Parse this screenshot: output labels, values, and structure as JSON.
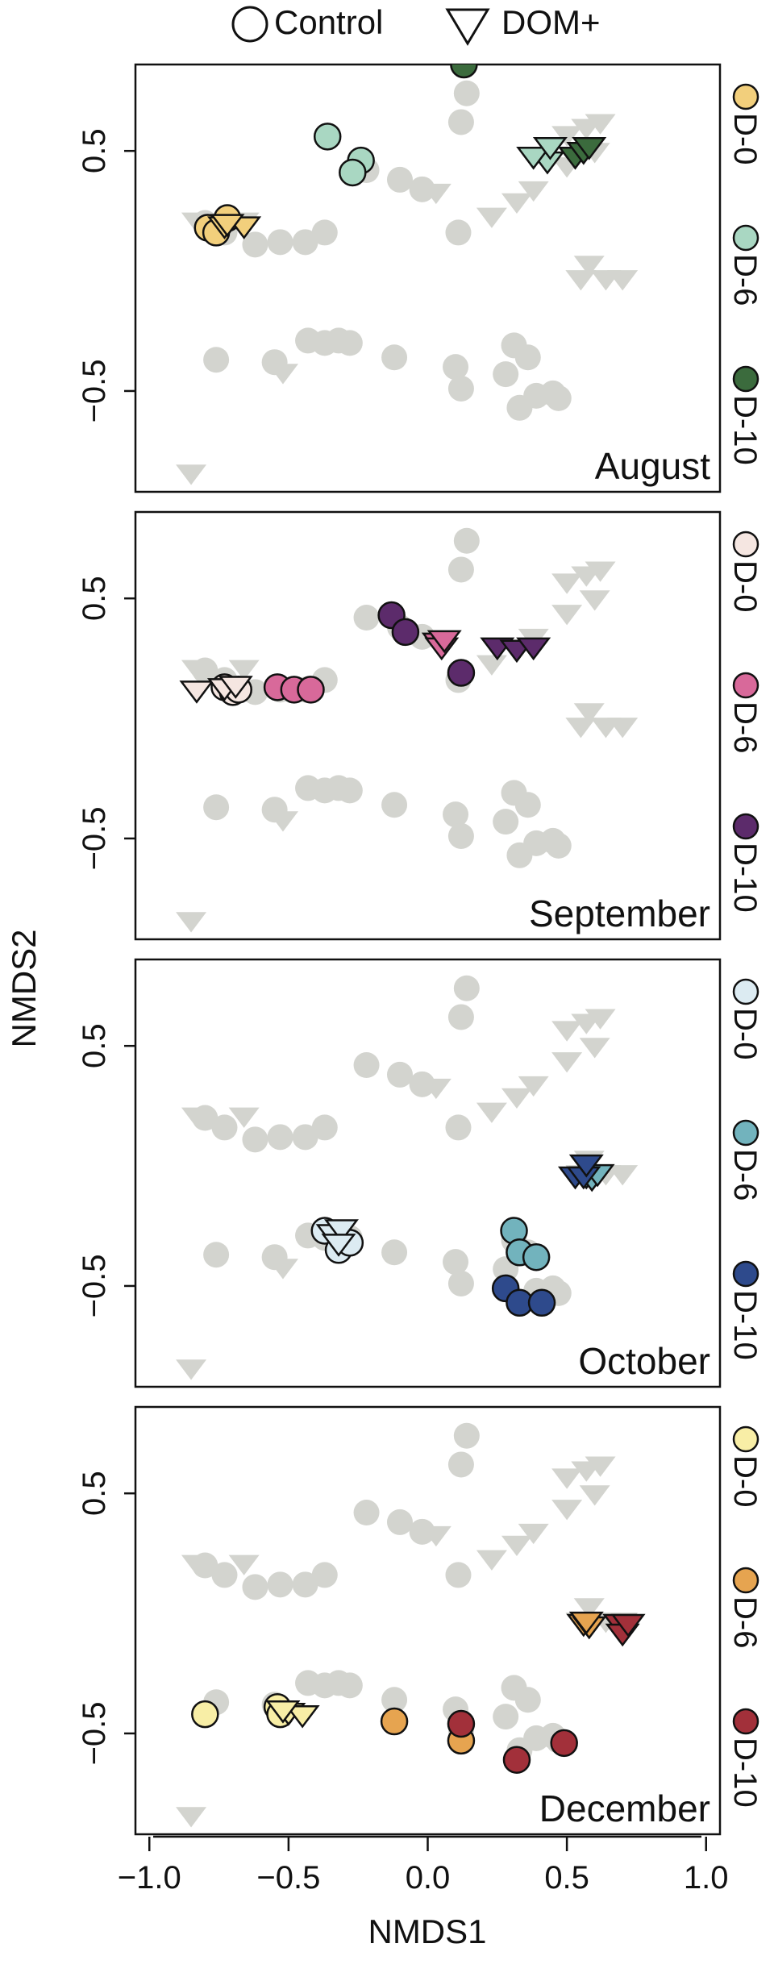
{
  "legend": {
    "shapes": [
      {
        "shape": "circle",
        "label": "Control"
      },
      {
        "shape": "triangle",
        "label": "DOM+"
      }
    ]
  },
  "axes": {
    "x": {
      "label": "NMDS1",
      "ticks": [
        "−1.0",
        "−0.5",
        "0.0",
        "0.5",
        "1.0"
      ],
      "tick_values": [
        -1.0,
        -0.5,
        0.0,
        0.5,
        1.0
      ],
      "range": [
        -1.05,
        1.05
      ]
    },
    "y": {
      "label": "NMDS2",
      "ticks": [
        "0.5",
        "−0.5"
      ],
      "tick_values": [
        0.5,
        -0.5
      ],
      "range": [
        -0.92,
        0.86
      ]
    }
  },
  "colors": {
    "background_points": "#d3d4cf",
    "outline": "#111111"
  },
  "chart_data": {
    "type": "scatter",
    "xlabel": "NMDS1",
    "ylabel": "NMDS2",
    "xlim": [
      -1.05,
      1.05
    ],
    "ylim": [
      -0.92,
      0.86
    ],
    "grid": false,
    "legend_position": "top",
    "background": {
      "name": "",
      "control": [
        [
          -0.8,
          0.2
        ],
        [
          -0.73,
          0.16
        ],
        [
          -0.62,
          0.11
        ],
        [
          -0.53,
          0.12
        ],
        [
          -0.44,
          0.12
        ],
        [
          -0.37,
          0.16
        ],
        [
          -0.22,
          0.42
        ],
        [
          -0.1,
          0.38
        ],
        [
          -0.02,
          0.34
        ],
        [
          0.11,
          0.16
        ],
        [
          0.12,
          0.62
        ],
        [
          0.14,
          0.74
        ],
        [
          0.13,
          0.93
        ],
        [
          -0.76,
          -0.37
        ],
        [
          -0.55,
          -0.38
        ],
        [
          -0.43,
          -0.29
        ],
        [
          -0.37,
          -0.3
        ],
        [
          -0.32,
          -0.29
        ],
        [
          -0.28,
          -0.3
        ],
        [
          -0.12,
          -0.36
        ],
        [
          0.1,
          -0.4
        ],
        [
          0.12,
          -0.49
        ],
        [
          0.28,
          -0.43
        ],
        [
          0.31,
          -0.31
        ],
        [
          0.36,
          -0.36
        ],
        [
          0.39,
          -0.52
        ],
        [
          0.45,
          -0.51
        ],
        [
          0.47,
          -0.53
        ],
        [
          0.33,
          -0.57
        ]
      ],
      "dom": [
        [
          -0.83,
          0.21
        ],
        [
          -0.66,
          0.21
        ],
        [
          -0.52,
          -0.42
        ],
        [
          0.03,
          0.33
        ],
        [
          0.23,
          0.23
        ],
        [
          0.32,
          0.29
        ],
        [
          0.38,
          0.34
        ],
        [
          0.5,
          0.44
        ],
        [
          0.6,
          0.5
        ],
        [
          0.5,
          0.57
        ],
        [
          0.57,
          0.6
        ],
        [
          0.62,
          0.62
        ],
        [
          0.58,
          0.03
        ],
        [
          0.64,
          -0.03
        ],
        [
          0.7,
          -0.03
        ],
        [
          0.55,
          -0.03
        ],
        [
          -0.85,
          -0.84
        ]
      ]
    },
    "panels": [
      {
        "month": "August",
        "series": [
          {
            "name": "D-0",
            "color": "#f2cf7c",
            "control": [
              [
                -0.79,
                0.18
              ],
              [
                -0.72,
                0.22
              ],
              [
                -0.76,
                0.16
              ]
            ],
            "dom": [
              [
                -0.73,
                0.19
              ],
              [
                -0.66,
                0.19
              ],
              [
                -0.72,
                0.2
              ]
            ]
          },
          {
            "name": "D-6",
            "color": "#a9d7c2",
            "control": [
              [
                -0.36,
                0.56
              ],
              [
                -0.24,
                0.46
              ],
              [
                -0.27,
                0.41
              ]
            ],
            "dom": [
              [
                0.43,
                0.46
              ],
              [
                0.38,
                0.48
              ],
              [
                0.44,
                0.52
              ]
            ]
          },
          {
            "name": "D-10",
            "color": "#3b6b3d",
            "control": [
              [
                0.14,
                1.0
              ],
              [
                0.12,
                0.95
              ],
              [
                0.13,
                0.86
              ]
            ],
            "dom": [
              [
                0.53,
                0.48
              ],
              [
                0.56,
                0.5
              ],
              [
                0.58,
                0.52
              ]
            ]
          }
        ]
      },
      {
        "month": "September",
        "series": [
          {
            "name": "D-0",
            "color": "#f5e6e1",
            "control": [
              [
                -0.73,
                0.13
              ],
              [
                -0.7,
                0.11
              ],
              [
                -0.68,
                0.12
              ]
            ],
            "dom": [
              [
                -0.83,
                0.12
              ],
              [
                -0.73,
                0.13
              ],
              [
                -0.69,
                0.14
              ]
            ]
          },
          {
            "name": "D-6",
            "color": "#d8699a",
            "control": [
              [
                -0.54,
                0.13
              ],
              [
                -0.48,
                0.12
              ],
              [
                -0.42,
                0.12
              ]
            ],
            "dom": [
              [
                0.04,
                0.32
              ],
              [
                0.05,
                0.3
              ],
              [
                0.06,
                0.33
              ]
            ]
          },
          {
            "name": "D-10",
            "color": "#5c2b6b",
            "control": [
              [
                -0.13,
                0.43
              ],
              [
                -0.08,
                0.36
              ],
              [
                0.12,
                0.19
              ]
            ],
            "dom": [
              [
                0.25,
                0.3
              ],
              [
                0.32,
                0.29
              ],
              [
                0.38,
                0.3
              ]
            ]
          }
        ]
      },
      {
        "month": "October",
        "series": [
          {
            "name": "D-0",
            "color": "#dcebf2",
            "control": [
              [
                -0.37,
                -0.27
              ],
              [
                -0.32,
                -0.35
              ],
              [
                -0.28,
                -0.32
              ]
            ],
            "dom": [
              [
                -0.34,
                -0.28
              ],
              [
                -0.31,
                -0.26
              ],
              [
                -0.32,
                -0.32
              ]
            ]
          },
          {
            "name": "D-6",
            "color": "#72b3bd",
            "control": [
              [
                0.31,
                -0.27
              ],
              [
                0.33,
                -0.36
              ],
              [
                0.39,
                -0.38
              ]
            ],
            "dom": [
              [
                0.57,
                -0.04
              ],
              [
                0.59,
                -0.05
              ],
              [
                0.61,
                -0.03
              ]
            ]
          },
          {
            "name": "D-10",
            "color": "#2e4a8c",
            "control": [
              [
                0.28,
                -0.51
              ],
              [
                0.33,
                -0.57
              ],
              [
                0.41,
                -0.57
              ]
            ],
            "dom": [
              [
                0.53,
                -0.04
              ],
              [
                0.56,
                -0.04
              ],
              [
                0.57,
                0.01
              ]
            ]
          }
        ]
      },
      {
        "month": "December",
        "series": [
          {
            "name": "D-0",
            "color": "#f8eea6",
            "control": [
              [
                -0.8,
                -0.42
              ],
              [
                -0.54,
                -0.39
              ],
              [
                -0.53,
                -0.42
              ]
            ],
            "dom": [
              [
                -0.5,
                -0.41
              ],
              [
                -0.45,
                -0.42
              ],
              [
                -0.52,
                -0.4
              ]
            ]
          },
          {
            "name": "D-6",
            "color": "#e6a450",
            "control": [
              [
                -0.12,
                -0.45
              ],
              [
                0.12,
                -0.53
              ]
            ],
            "dom": [
              [
                0.56,
                -0.04
              ],
              [
                0.58,
                -0.05
              ],
              [
                0.57,
                -0.03
              ]
            ]
          },
          {
            "name": "D-10",
            "color": "#a2303a",
            "control": [
              [
                0.12,
                -0.46
              ],
              [
                0.32,
                -0.61
              ],
              [
                0.49,
                -0.54
              ]
            ],
            "dom": [
              [
                0.69,
                -0.04
              ],
              [
                0.7,
                -0.08
              ],
              [
                0.72,
                -0.04
              ]
            ]
          }
        ]
      }
    ]
  }
}
